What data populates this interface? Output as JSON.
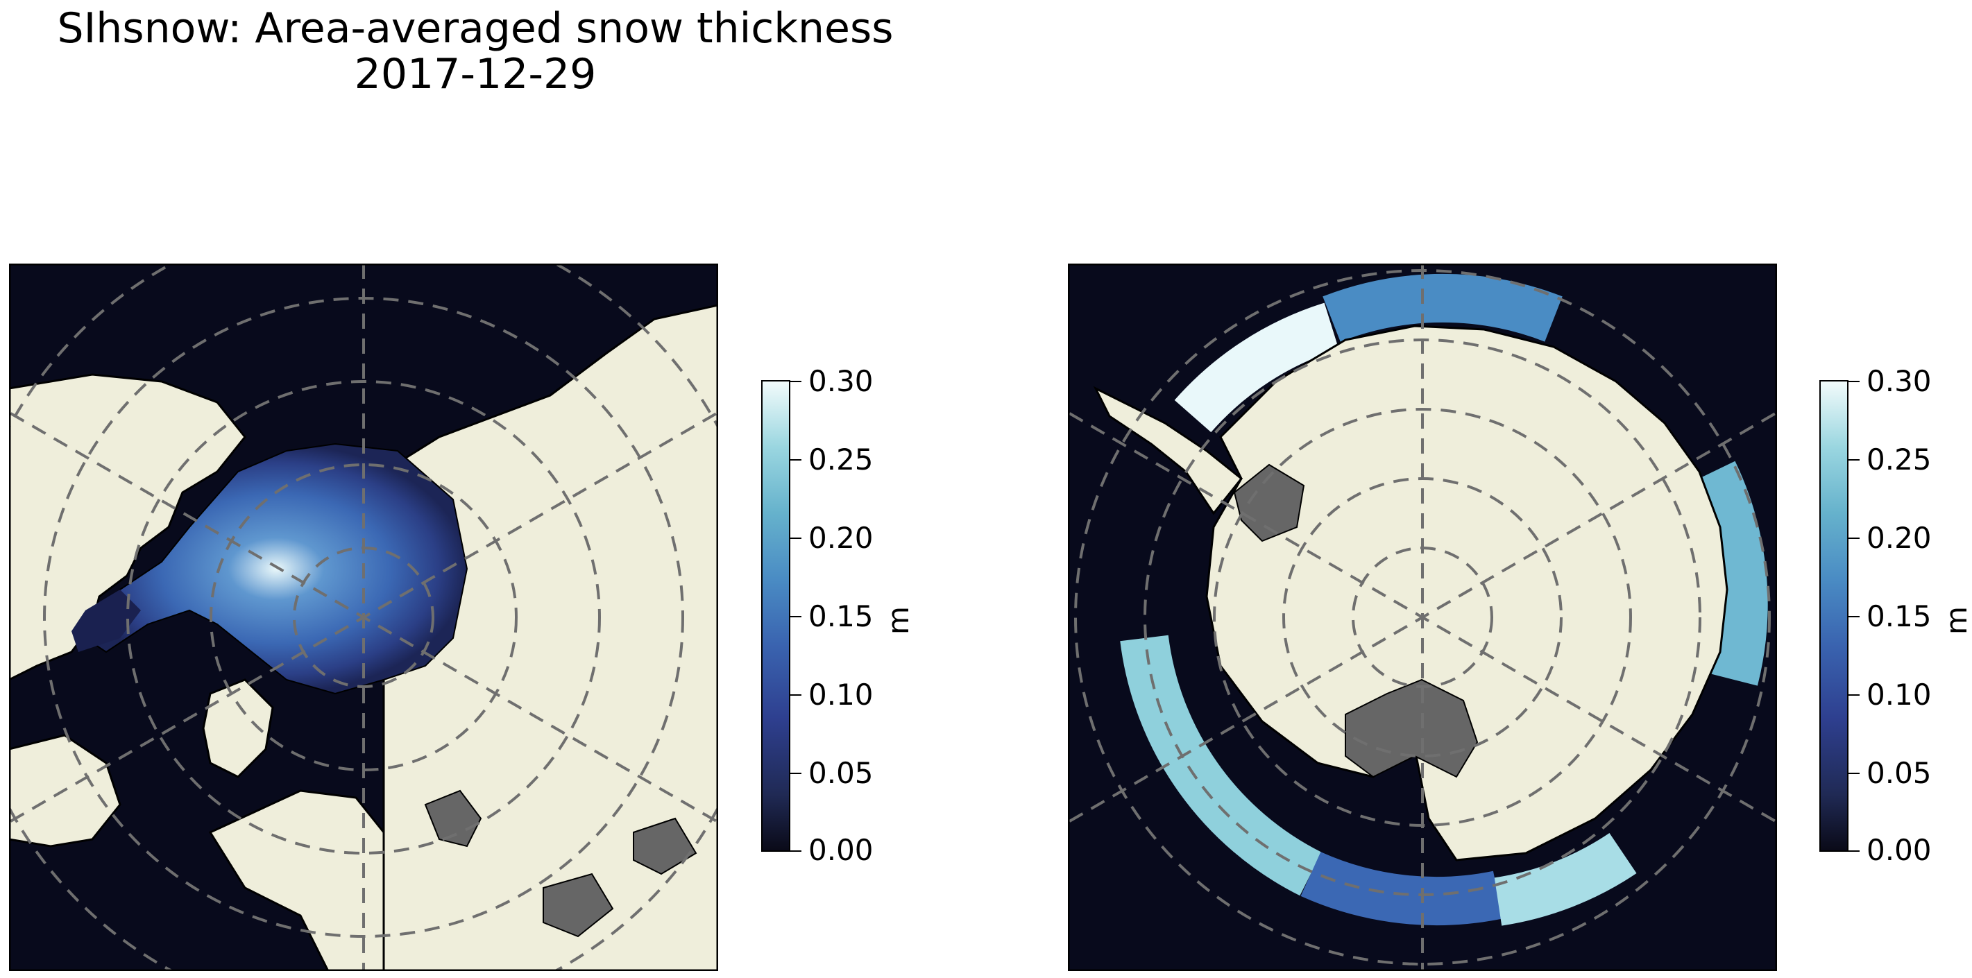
{
  "figure": {
    "title_line1": "SIhsnow: Area-averaged snow thickness",
    "title_line2": "2017-12-29"
  },
  "maps": [
    {
      "name": "north-polar-map",
      "hemisphere": "north",
      "projection": "polar stereographic"
    },
    {
      "name": "south-polar-map",
      "hemisphere": "south",
      "projection": "polar stereographic"
    }
  ],
  "colorbar": {
    "unit": "m",
    "min": 0.0,
    "max": 0.3,
    "ticks": [
      "0.00",
      "0.05",
      "0.10",
      "0.15",
      "0.20",
      "0.25",
      "0.30"
    ],
    "colormap": [
      "#0a0a18",
      "#2e3f8f",
      "#4a8cc4",
      "#9ad6e0",
      "#f2fbfb"
    ]
  },
  "colors": {
    "ocean": "#080a1c",
    "land": "#efeedb",
    "ice_shelf": "#666666",
    "gridline": "#6f6f6f"
  }
}
